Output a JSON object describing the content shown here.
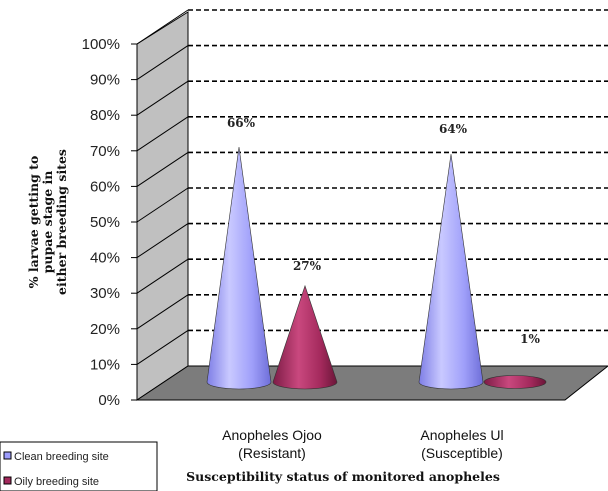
{
  "chart_data": {
    "type": "bar",
    "style": "3d-cone",
    "categories": [
      "Anopheles Ojoo\n(Resistant)",
      "Anopheles Ul\n(Susceptible)"
    ],
    "series": [
      {
        "name": "Clean breeding site",
        "values": [
          66,
          64
        ],
        "labels": [
          "66%",
          "64%"
        ],
        "color": "#9c9cfc"
      },
      {
        "name": "Oily breeding site",
        "values": [
          27,
          1
        ],
        "labels": [
          "27%",
          "1%"
        ],
        "color": "#a3295c"
      }
    ],
    "ylabel_lines": [
      "% larvae getting to",
      "pupae stage in",
      "either breeding sites"
    ],
    "xlabel": "Susceptibility status of monitored anopheles",
    "ylim": [
      0,
      100
    ],
    "ytick_labels": [
      "0%",
      "10%",
      "20%",
      "30%",
      "40%",
      "50%",
      "60%",
      "70%",
      "80%",
      "90%",
      "100%"
    ],
    "grid": true,
    "legend_position": "bottom-left",
    "colors": {
      "wall": "#c0c0c0",
      "floor": "#7c7c7c",
      "grid": "#000000",
      "background": "#ffffff"
    }
  }
}
